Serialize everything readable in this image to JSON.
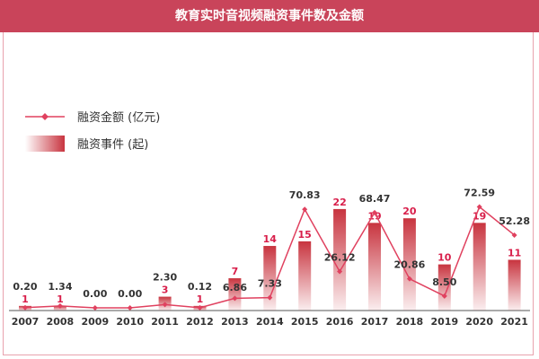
{
  "title": "教育实时音视频融资事件数及金额",
  "colors": {
    "title_bg": "#c9445a",
    "line": "#e0415f",
    "bar": "#c8343f",
    "count_label": "#d81e4a",
    "amount_label": "#333333"
  },
  "chart_data": {
    "type": "bar+line",
    "title": "教育实时音视频融资事件数及金额",
    "categories": [
      "2007",
      "2008",
      "2009",
      "2010",
      "2011",
      "2012",
      "2013",
      "2014",
      "2015",
      "2016",
      "2017",
      "2018",
      "2019",
      "2020",
      "2021"
    ],
    "series": [
      {
        "name": "融资金额 (亿元)",
        "type": "line",
        "values": [
          0.2,
          1.34,
          0.0,
          0.0,
          2.3,
          0.12,
          6.86,
          7.33,
          70.83,
          26.12,
          68.47,
          20.86,
          8.5,
          72.59,
          52.28
        ]
      },
      {
        "name": "融资事件 (起)",
        "type": "bar",
        "values": [
          1,
          1,
          0,
          0,
          3,
          1,
          7,
          14,
          15,
          22,
          19,
          20,
          10,
          19,
          11
        ]
      }
    ],
    "legend": "top-left",
    "grid": false
  }
}
